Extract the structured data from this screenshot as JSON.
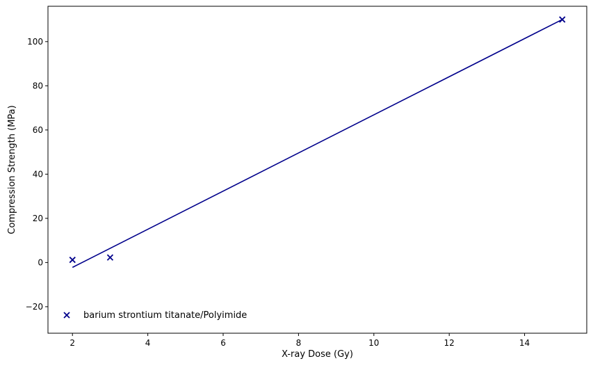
{
  "chart_data": {
    "type": "scatter",
    "title": "",
    "xlabel": "X-ray Dose (Gy)",
    "ylabel": "Compression Strength (MPa)",
    "xlim": [
      1.35,
      15.65
    ],
    "ylim": [
      -32.0,
      116.0
    ],
    "xticks": [
      2,
      4,
      6,
      8,
      10,
      12,
      14
    ],
    "yticks": [
      -20,
      0,
      20,
      40,
      60,
      80,
      100
    ],
    "xtick_labels": [
      "2",
      "4",
      "6",
      "8",
      "10",
      "12",
      "14"
    ],
    "ytick_labels": [
      "−20",
      "0",
      "20",
      "40",
      "60",
      "80",
      "100"
    ],
    "grid": false,
    "legend_position": "lower-left",
    "series": [
      {
        "name": "barium strontium titanate/Polyimide",
        "marker": "x",
        "color": "#00008b",
        "x": [
          2,
          3,
          15
        ],
        "y": [
          1.2,
          2.3,
          110.0
        ]
      }
    ],
    "fit_line": {
      "color": "#00008b",
      "x": [
        2,
        15
      ],
      "y": [
        -2.2,
        110.0
      ]
    }
  }
}
